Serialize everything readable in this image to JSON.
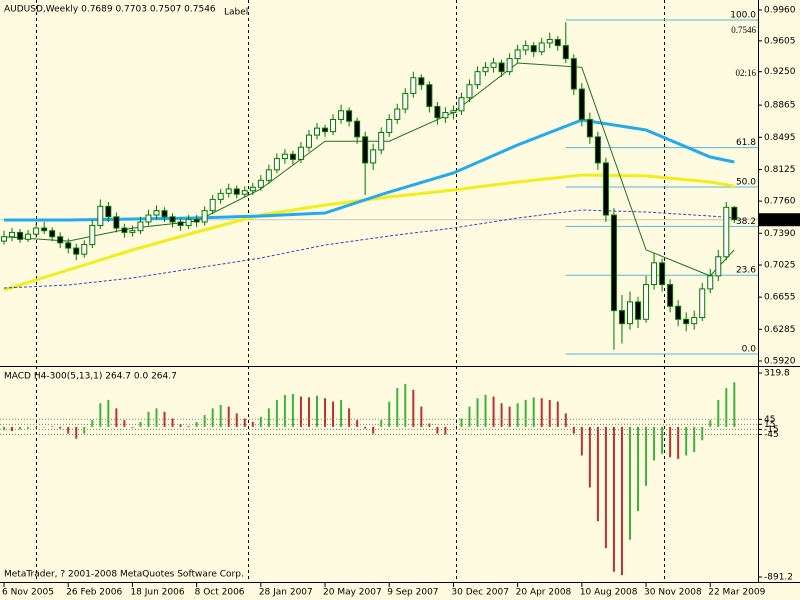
{
  "chart_data": [
    {
      "type": "candlestick",
      "title": "AUDUSD,Weekly  0.7689 0.7703 0.7507 0.7546",
      "annotations": [
        "Label",
        "0.7546",
        "02:16"
      ],
      "colors": {
        "wick": "#007a00",
        "up": "#ffffff",
        "down": "#000000",
        "background": "#fffbe0",
        "label": "#a0a0a0",
        "big_price": "#e89a28",
        "clock": "#3a8a1e"
      },
      "xlim": [
        -0.5,
        93.95
      ],
      "xticks": [
        {
          "value": 0,
          "label": "6 Nov 2005"
        },
        {
          "value": 8,
          "label": "26 Feb 2006"
        },
        {
          "value": 16,
          "label": "18 Jun 2006"
        },
        {
          "value": 24,
          "label": "8 Oct 2006"
        },
        {
          "value": 32,
          "label": "28 Jan 2007"
        },
        {
          "value": 40,
          "label": "20 May 2007"
        },
        {
          "value": 48,
          "label": "9 Sep 2007"
        },
        {
          "value": 56,
          "label": "30 Dec 2007"
        },
        {
          "value": 64,
          "label": "20 Apr 2008"
        },
        {
          "value": 72,
          "label": "10 Aug 2008"
        },
        {
          "value": 80,
          "label": "30 Nov 2008"
        },
        {
          "value": 88,
          "label": "22 Mar 2009"
        }
      ],
      "ylim": [
        0.5874,
        1.0052
      ],
      "yticks": [
        {
          "value": 0.996,
          "label": "0.9960"
        },
        {
          "value": 0.9605,
          "label": "0.9605"
        },
        {
          "value": 0.925,
          "label": "0.9250"
        },
        {
          "value": 0.8865,
          "label": "0.8865"
        },
        {
          "value": 0.8495,
          "label": "0.8495"
        },
        {
          "value": 0.8125,
          "label": "0.8125"
        },
        {
          "value": 0.776,
          "label": "0.7760"
        },
        {
          "value": 0.739,
          "label": "0.7390"
        },
        {
          "value": 0.7025,
          "label": "0.7025"
        },
        {
          "value": 0.6655,
          "label": "0.6655"
        },
        {
          "value": 0.6285,
          "label": "0.6285"
        },
        {
          "value": 0.592,
          "label": "0.5920"
        }
      ],
      "price_marker": {
        "value": 0.7546,
        "label": "0.7546"
      },
      "open": [
        0.73,
        0.735,
        0.74,
        0.732,
        0.738,
        0.745,
        0.742,
        0.735,
        0.728,
        0.722,
        0.715,
        0.726,
        0.748,
        0.77,
        0.758,
        0.745,
        0.74,
        0.742,
        0.752,
        0.76,
        0.765,
        0.758,
        0.752,
        0.748,
        0.755,
        0.752,
        0.765,
        0.778,
        0.785,
        0.79,
        0.784,
        0.788,
        0.792,
        0.8,
        0.812,
        0.825,
        0.83,
        0.824,
        0.838,
        0.852,
        0.86,
        0.856,
        0.87,
        0.88,
        0.868,
        0.85,
        0.82,
        0.835,
        0.855,
        0.87,
        0.882,
        0.9,
        0.918,
        0.91,
        0.885,
        0.872,
        0.878,
        0.88,
        0.895,
        0.91,
        0.925,
        0.93,
        0.935,
        0.925,
        0.94,
        0.95,
        0.955,
        0.948,
        0.958,
        0.962,
        0.955,
        0.94,
        0.905,
        0.87,
        0.85,
        0.82,
        0.76,
        0.65,
        0.635,
        0.66,
        0.64,
        0.68,
        0.705,
        0.68,
        0.655,
        0.64,
        0.635,
        0.642,
        0.675,
        0.69,
        0.712,
        0.7689
      ],
      "high": [
        0.742,
        0.745,
        0.744,
        0.743,
        0.75,
        0.752,
        0.746,
        0.74,
        0.733,
        0.727,
        0.731,
        0.754,
        0.778,
        0.775,
        0.763,
        0.75,
        0.748,
        0.758,
        0.766,
        0.771,
        0.769,
        0.762,
        0.756,
        0.76,
        0.76,
        0.77,
        0.783,
        0.79,
        0.796,
        0.794,
        0.793,
        0.797,
        0.806,
        0.818,
        0.831,
        0.836,
        0.834,
        0.844,
        0.858,
        0.866,
        0.864,
        0.876,
        0.887,
        0.884,
        0.872,
        0.856,
        0.842,
        0.861,
        0.876,
        0.888,
        0.906,
        0.925,
        0.922,
        0.914,
        0.89,
        0.884,
        0.886,
        0.901,
        0.916,
        0.931,
        0.936,
        0.941,
        0.939,
        0.946,
        0.956,
        0.961,
        0.959,
        0.964,
        0.97,
        0.966,
        0.982,
        0.945,
        0.912,
        0.878,
        0.856,
        0.826,
        0.768,
        0.668,
        0.672,
        0.666,
        0.69,
        0.716,
        0.71,
        0.686,
        0.662,
        0.648,
        0.65,
        0.682,
        0.698,
        0.72,
        0.775,
        0.7703
      ],
      "low": [
        0.726,
        0.73,
        0.728,
        0.729,
        0.734,
        0.738,
        0.73,
        0.722,
        0.716,
        0.708,
        0.711,
        0.722,
        0.744,
        0.752,
        0.74,
        0.734,
        0.735,
        0.738,
        0.748,
        0.755,
        0.752,
        0.746,
        0.742,
        0.744,
        0.746,
        0.748,
        0.761,
        0.773,
        0.78,
        0.779,
        0.78,
        0.783,
        0.788,
        0.796,
        0.808,
        0.819,
        0.818,
        0.82,
        0.833,
        0.847,
        0.85,
        0.852,
        0.865,
        0.862,
        0.842,
        0.783,
        0.812,
        0.83,
        0.85,
        0.865,
        0.877,
        0.895,
        0.904,
        0.878,
        0.864,
        0.866,
        0.87,
        0.875,
        0.89,
        0.905,
        0.92,
        0.924,
        0.919,
        0.921,
        0.935,
        0.944,
        0.942,
        0.944,
        0.952,
        0.949,
        0.935,
        0.898,
        0.862,
        0.842,
        0.812,
        0.752,
        0.605,
        0.612,
        0.628,
        0.63,
        0.636,
        0.674,
        0.672,
        0.648,
        0.632,
        0.626,
        0.628,
        0.638,
        0.67,
        0.684,
        0.708,
        0.7507
      ],
      "close": [
        0.735,
        0.74,
        0.732,
        0.738,
        0.745,
        0.742,
        0.735,
        0.728,
        0.722,
        0.715,
        0.726,
        0.748,
        0.77,
        0.758,
        0.745,
        0.74,
        0.742,
        0.752,
        0.76,
        0.765,
        0.758,
        0.752,
        0.748,
        0.755,
        0.752,
        0.765,
        0.778,
        0.785,
        0.79,
        0.784,
        0.788,
        0.792,
        0.8,
        0.812,
        0.825,
        0.83,
        0.824,
        0.838,
        0.852,
        0.86,
        0.856,
        0.87,
        0.88,
        0.868,
        0.85,
        0.82,
        0.835,
        0.855,
        0.87,
        0.882,
        0.9,
        0.918,
        0.91,
        0.885,
        0.872,
        0.878,
        0.88,
        0.895,
        0.91,
        0.925,
        0.93,
        0.935,
        0.925,
        0.94,
        0.95,
        0.955,
        0.948,
        0.958,
        0.962,
        0.955,
        0.94,
        0.905,
        0.87,
        0.85,
        0.82,
        0.76,
        0.65,
        0.635,
        0.66,
        0.64,
        0.68,
        0.705,
        0.68,
        0.655,
        0.64,
        0.635,
        0.642,
        0.675,
        0.69,
        0.712,
        0.7689,
        0.7546
      ],
      "lines": [
        {
          "color": "#f2ee1c",
          "width": 3,
          "dash": false,
          "x": [
            0,
            8,
            16,
            24,
            32,
            40,
            48,
            56,
            64,
            72,
            80,
            88,
            91
          ],
          "values": [
            0.6738,
            0.6967,
            0.7198,
            0.7405,
            0.76,
            0.7716,
            0.7808,
            0.7888,
            0.798,
            0.8061,
            0.805,
            0.798,
            0.7934
          ]
        },
        {
          "color": "#22aaee",
          "width": 3,
          "dash": false,
          "x": [
            0,
            8,
            16,
            24,
            32,
            40,
            48,
            56,
            64,
            72,
            80,
            88,
            91
          ],
          "values": [
            0.7543,
            0.7543,
            0.7554,
            0.7566,
            0.7589,
            0.7623,
            0.7865,
            0.8084,
            0.8406,
            0.8694,
            0.8579,
            0.8268,
            0.821
          ]
        },
        {
          "color": "#4040c0",
          "width": 1,
          "dash": true,
          "x": [
            0,
            8,
            16,
            24,
            32,
            40,
            48,
            56,
            64,
            72,
            80,
            88,
            91
          ],
          "values": [
            0.676,
            0.6795,
            0.6875,
            0.699,
            0.7106,
            0.7255,
            0.7359,
            0.7451,
            0.7566,
            0.7658,
            0.7635,
            0.7589,
            0.7566
          ]
        },
        {
          "color": "#207020",
          "width": 1,
          "dash": false,
          "x": [
            0,
            8,
            16,
            24,
            32,
            40,
            48,
            56,
            64,
            72,
            80,
            88,
            91
          ],
          "values": [
            0.735,
            0.73,
            0.745,
            0.753,
            0.79,
            0.845,
            0.845,
            0.878,
            0.935,
            0.93,
            0.72,
            0.69,
            0.72
          ]
        }
      ],
      "fib_color": "#5ab4dc",
      "fib_start": 70,
      "fib_levels": [
        {
          "label": "100.0",
          "value": 0.9845
        },
        {
          "label": "61.8",
          "value": 0.8376
        },
        {
          "label": "50.0",
          "value": 0.7923
        },
        {
          "label": "38.2",
          "value": 0.7469
        },
        {
          "label": "23.6",
          "value": 0.6907
        },
        {
          "label": "0.0",
          "value": 0.6
        }
      ]
    },
    {
      "type": "histogram",
      "title": "MACD H4-300(5,13,1) 264.7 0.0 264.7",
      "annotations": [
        "MetaTrader, ? 2001-2008 MetaQuotes Software Corp."
      ],
      "colors": {
        "up": "#3cb43c",
        "down": "#c03030",
        "level": "#808080"
      },
      "xlim": [
        -0.5,
        93.95
      ],
      "ylim": [
        -909,
        349.5
      ],
      "yticks": [
        319.8,
        45,
        15,
        -15,
        -45,
        -891.2
      ],
      "values": [
        -20,
        -25,
        -15,
        -10,
        -5,
        0,
        5,
        -10,
        -40,
        -70,
        -40,
        40,
        140,
        160,
        110,
        40,
        -5,
        30,
        90,
        110,
        90,
        50,
        15,
        5,
        30,
        70,
        110,
        130,
        120,
        80,
        50,
        30,
        60,
        110,
        160,
        190,
        195,
        180,
        175,
        185,
        170,
        150,
        160,
        110,
        40,
        -10,
        -40,
        40,
        150,
        230,
        255,
        220,
        120,
        20,
        -40,
        -45,
        0,
        50,
        120,
        170,
        190,
        180,
        140,
        120,
        140,
        160,
        175,
        170,
        160,
        150,
        80,
        -40,
        -170,
        -360,
        -560,
        -720,
        -860,
        -880,
        -670,
        -500,
        -350,
        -200,
        -160,
        -180,
        -190,
        -170,
        -150,
        -80,
        40,
        160,
        230,
        264.7
      ]
    }
  ]
}
